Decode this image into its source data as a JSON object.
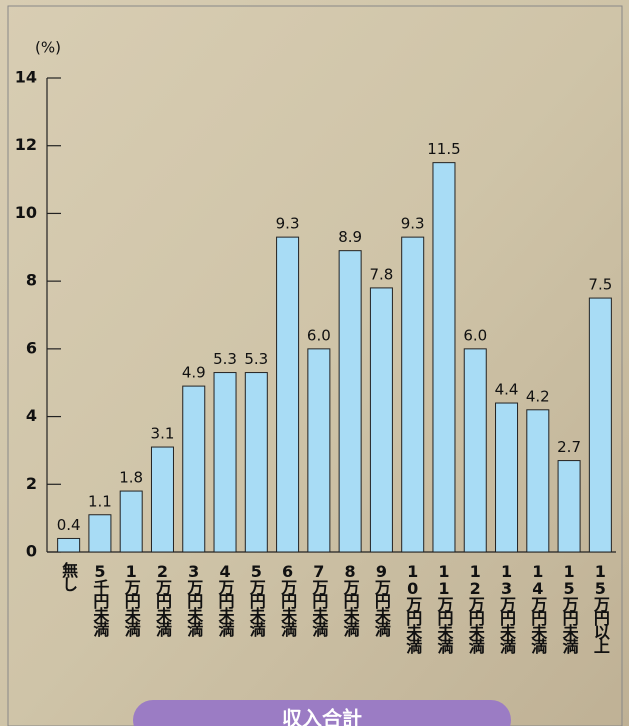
{
  "chart_data": {
    "type": "bar",
    "y_label": "(%)",
    "categories": [
      "無し",
      "5千円未満",
      "1万円未満",
      "2万円未満",
      "3万円未満",
      "4万円未満",
      "5万円未満",
      "6万円未満",
      "7万円未満",
      "8万円未満",
      "9万円未満",
      "10万円未満",
      "11万円未満",
      "12万円未満",
      "13万円未満",
      "14万円未満",
      "15万円未満",
      "15万円以上"
    ],
    "values": [
      0.4,
      1.1,
      1.8,
      3.1,
      4.9,
      5.3,
      5.3,
      9.3,
      6.0,
      8.9,
      7.8,
      9.3,
      11.5,
      6.0,
      4.4,
      4.2,
      2.7,
      7.5
    ],
    "value_labels": [
      "0.4",
      "1.1",
      "1.8",
      "3.1",
      "4.9",
      "5.3",
      "5.3",
      "9.3",
      "6.0",
      "8.9",
      "7.8",
      "9.3",
      "11.5",
      "6.0",
      "4.4",
      "4.2",
      "2.7",
      "7.5"
    ],
    "color": "#a8dcf5",
    "ylim": [
      0,
      14
    ],
    "yticks": [
      0,
      2,
      4,
      6,
      8,
      10,
      12,
      14
    ],
    "grid": false
  },
  "button": {
    "label": "収入合計"
  }
}
